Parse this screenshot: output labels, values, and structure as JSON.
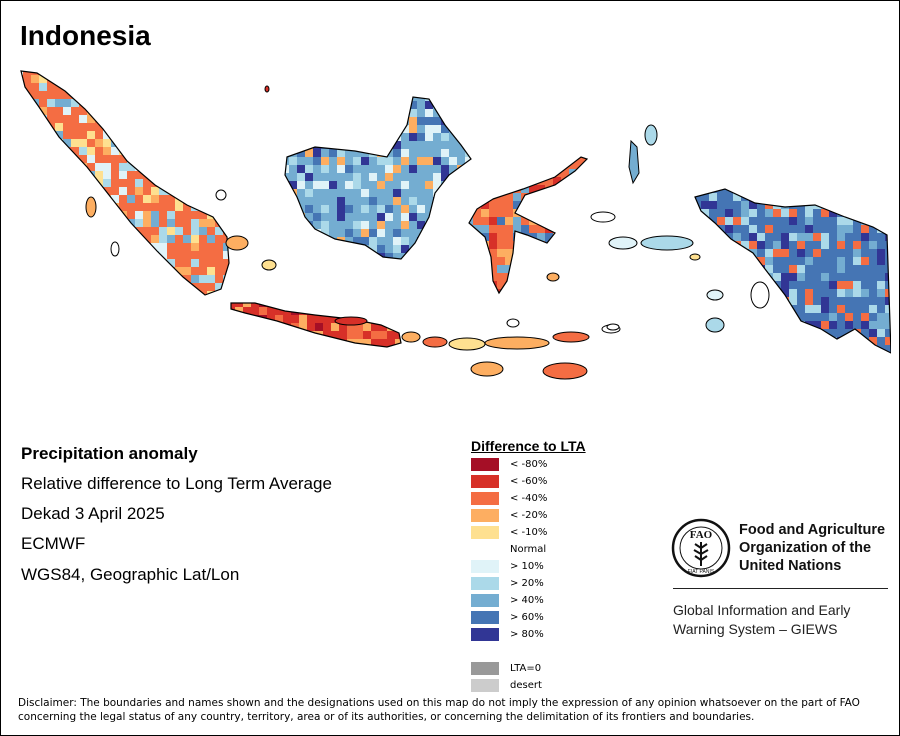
{
  "title": "Indonesia",
  "info": {
    "heading": "Precipitation anomaly",
    "lines": [
      "Relative difference to Long Term Average",
      "Dekad 3 April 2025",
      "ECMWF",
      "WGS84, Geographic Lat/Lon"
    ]
  },
  "legend": {
    "title": "Difference to LTA",
    "items": [
      {
        "label": "< -80%",
        "color": "#a50f26"
      },
      {
        "label": "< -60%",
        "color": "#d73028"
      },
      {
        "label": "< -40%",
        "color": "#f46d43"
      },
      {
        "label": "< -20%",
        "color": "#fdae61"
      },
      {
        "label": "< -10%",
        "color": "#fee090"
      },
      {
        "label": "Normal",
        "color": "#ffffff"
      },
      {
        "label": "> 10%",
        "color": "#e0f3f8"
      },
      {
        "label": "> 20%",
        "color": "#abd9e9"
      },
      {
        "label": "> 40%",
        "color": "#74add1"
      },
      {
        "label": "> 60%",
        "color": "#4575b4"
      },
      {
        "label": "> 80%",
        "color": "#313695"
      },
      {
        "label": "",
        "color": "#ffffff"
      },
      {
        "label": "LTA=0",
        "color": "#999999"
      },
      {
        "label": "desert",
        "color": "#cccccc"
      }
    ]
  },
  "organization": {
    "name_lines": [
      "Food and Agriculture",
      "Organization of the",
      "United Nations"
    ],
    "logo_text": "FAO",
    "logo_motto": "FIAT PANIS",
    "system_lines": [
      "Global Information and Early",
      "Warning System – GIEWS"
    ]
  },
  "disclaimer": "Disclaimer: The boundaries and names shown and the designations used on this map do not imply the expression of any opinion whatsoever on the part of FAO concerning the legal status of any country, territory, area or of its authorities, or concerning the delimitation of its frontiers and boundaries.",
  "map_data": {
    "type": "choropleth-raster",
    "regions": [
      {
        "name": "Sumatra",
        "dominant_class": "< -40%",
        "mix": [
          "< -40%",
          "< -20%",
          "< -10%",
          "> 10%",
          "> 20%",
          "> 40%"
        ]
      },
      {
        "name": "Kalimantan",
        "dominant_class": "> 40%",
        "mix": [
          "> 10%",
          "> 20%",
          "> 40%",
          "> 60%",
          "> 80%",
          "< -20%"
        ]
      },
      {
        "name": "Java",
        "dominant_class": "< -60%",
        "mix": [
          "< -80%",
          "< -60%",
          "< -40%",
          "< -20%"
        ]
      },
      {
        "name": "Sulawesi",
        "dominant_class": "< -40%",
        "mix": [
          "< -60%",
          "< -40%",
          "< -20%",
          "> 40%",
          "> 60%"
        ]
      },
      {
        "name": "Lesser Sunda Islands",
        "dominant_class": "< -20%",
        "mix": [
          "< -40%",
          "< -20%",
          "< -10%"
        ]
      },
      {
        "name": "Maluku",
        "dominant_class": "> 20%",
        "mix": [
          "> 10%",
          "> 20%",
          "> 40%",
          "< -10%"
        ]
      },
      {
        "name": "Papua",
        "dominant_class": "> 60%",
        "mix": [
          "> 20%",
          "> 40%",
          "> 60%",
          "> 80%",
          "< -40%"
        ]
      }
    ]
  }
}
